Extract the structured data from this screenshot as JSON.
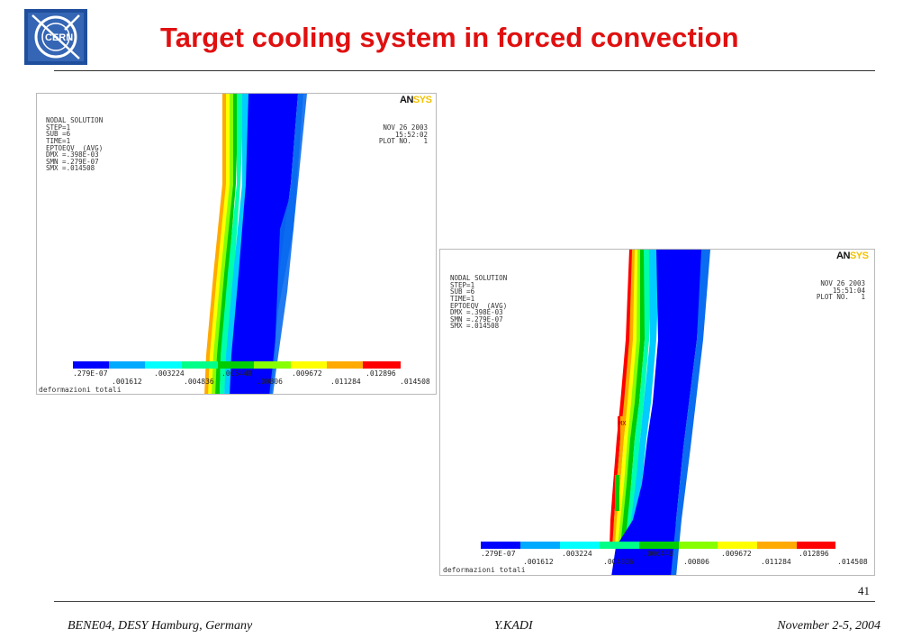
{
  "slide": {
    "title": "Target cooling system in forced convection",
    "logo_text": "CERN",
    "page_number": "41"
  },
  "footer": {
    "left": "BENE04, DESY Hamburg, Germany",
    "center": "Y.KADI",
    "right": "November 2-5, 2004"
  },
  "colors": {
    "title": "#e01010",
    "logo_blue": "#1f4e9c",
    "contour_band_1": "#0000ff",
    "contour_band_2": "#00aaff",
    "contour_band_3": "#00ffff",
    "contour_band_4": "#00ff88",
    "contour_band_5": "#00cc00",
    "contour_band_6": "#88ff00",
    "contour_band_7": "#ffff00",
    "contour_band_8": "#ffaa00",
    "contour_band_9": "#ff0000"
  },
  "plot1": {
    "brand_an": "AN",
    "brand_sys": "SYS",
    "info_lines": [
      "NODAL SOLUTION",
      "STEP=1",
      "SUB =6",
      "TIME=1",
      "EPTOEQV  (AVG)",
      "DMX =.398E-03",
      "SMN =.279E-07",
      "SMX =.014508"
    ],
    "date": "NOV 26 2003",
    "time": "15:52:02",
    "plot_no": "PLOT NO.   1",
    "legend_top": [
      ".279E-07",
      ".003224",
      ".006448",
      ".009672",
      ".012896"
    ],
    "legend_bottom": [
      ".001612",
      ".004836",
      ".00806",
      ".011284",
      ".014508"
    ],
    "caption": "deformazioni totali"
  },
  "plot2": {
    "brand_an": "AN",
    "brand_sys": "SYS",
    "info_lines": [
      "NODAL SOLUTION",
      "STEP=1",
      "SUB =6",
      "TIME=1",
      "EPTOEQV  (AVG)",
      "DMX =.398E-03",
      "SMN =.279E-07",
      "SMX =.014508"
    ],
    "date": "NOV 26 2003",
    "time": "15:51:04",
    "plot_no": "PLOT NO.   1",
    "legend_top": [
      ".279E-07",
      ".003224",
      ".006448",
      ".009672",
      ".012896"
    ],
    "legend_bottom": [
      ".001612",
      ".004836",
      ".00806",
      ".011284",
      ".014508"
    ],
    "caption": "deformazioni totali",
    "mx_label": "MX"
  }
}
